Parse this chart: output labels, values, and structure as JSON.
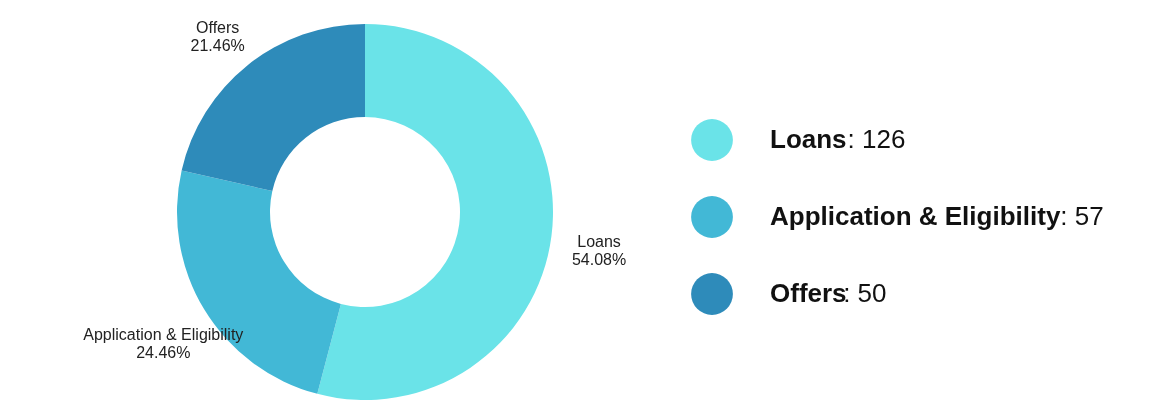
{
  "chart_data": {
    "type": "donut",
    "categories": [
      "Loans",
      "Application & Eligibility",
      "Offers"
    ],
    "values": [
      54.08,
      24.46,
      21.46
    ],
    "colors": [
      "#6ae3e8",
      "#42b8d6",
      "#2e8bba"
    ],
    "value_labels": [
      "54.08%",
      "24.46%",
      "21.46%"
    ],
    "annotations": [
      ": 126",
      ": 57",
      ": 50"
    ],
    "legend": "right"
  }
}
